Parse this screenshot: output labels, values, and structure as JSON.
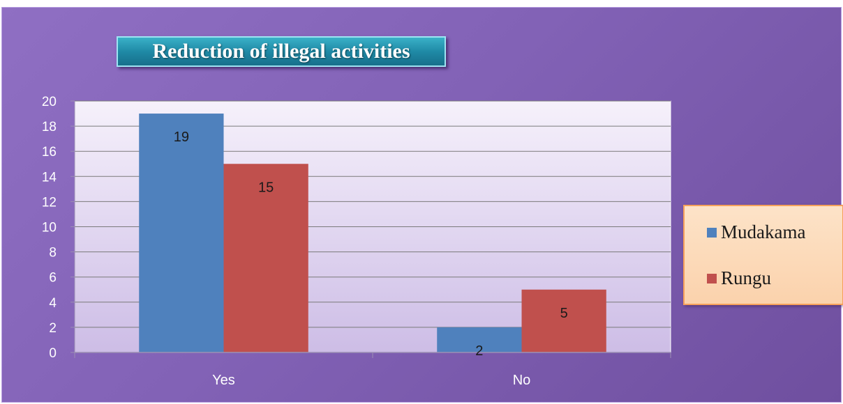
{
  "chart_data": {
    "type": "bar",
    "title": "Reduction of illegal activities",
    "categories": [
      "Yes",
      "No"
    ],
    "series": [
      {
        "name": "Mudakama",
        "values": [
          19,
          2
        ],
        "color": "#4f81bd"
      },
      {
        "name": "Rungu",
        "values": [
          15,
          5
        ],
        "color": "#c0504d"
      }
    ],
    "ylim": [
      0,
      20
    ],
    "yticks": [
      "0",
      "2",
      "4",
      "6",
      "8",
      "10",
      "12",
      "14",
      "16",
      "18",
      "20"
    ],
    "data_labels": true,
    "grid": true,
    "legend_position": "right"
  }
}
